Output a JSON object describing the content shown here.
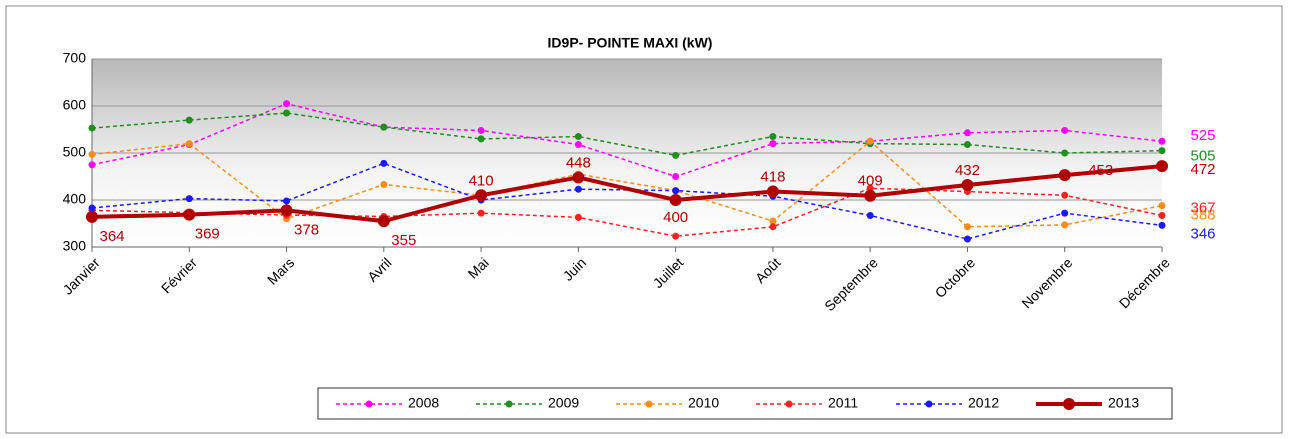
{
  "chart_data": {
    "type": "line",
    "title": "ID9P- POINTE MAXI  (kW)",
    "categories": [
      "Janvier",
      "Février",
      "Mars",
      "Avril",
      "Mai",
      "Juin",
      "Juillet",
      "Août",
      "Septembre",
      "Octobre",
      "Novembre",
      "Décembre"
    ],
    "ylim": [
      300,
      700
    ],
    "yticks": [
      300,
      400,
      500,
      600,
      700
    ],
    "grid": true,
    "series": [
      {
        "name": "2008",
        "color": "#ff00ff",
        "values": [
          475,
          518,
          605,
          555,
          548,
          518,
          450,
          520,
          525,
          543,
          548,
          525
        ],
        "value_labels": [
          null,
          null,
          null,
          null,
          null,
          null,
          null,
          null,
          null,
          null,
          null,
          "525"
        ]
      },
      {
        "name": "2009",
        "color": "#1f8f1f",
        "values": [
          553,
          570,
          585,
          555,
          530,
          535,
          495,
          535,
          520,
          518,
          500,
          505
        ],
        "value_labels": [
          null,
          null,
          null,
          null,
          null,
          null,
          null,
          null,
          null,
          null,
          null,
          "505"
        ]
      },
      {
        "name": "2010",
        "color": "#ff8c1a",
        "values": [
          497,
          520,
          360,
          433,
          410,
          455,
          420,
          355,
          525,
          343,
          347,
          388
        ],
        "value_labels": [
          null,
          null,
          null,
          null,
          null,
          null,
          null,
          null,
          null,
          null,
          null,
          "388"
        ]
      },
      {
        "name": "2011",
        "color": "#ff2020",
        "values": [
          378,
          373,
          368,
          365,
          372,
          363,
          323,
          343,
          425,
          418,
          410,
          367
        ],
        "value_labels": [
          null,
          null,
          null,
          null,
          null,
          null,
          null,
          null,
          null,
          null,
          null,
          "367"
        ]
      },
      {
        "name": "2012",
        "color": "#1a1aff",
        "values": [
          383,
          403,
          398,
          478,
          400,
          423,
          420,
          408,
          367,
          317,
          372,
          346
        ],
        "value_labels": [
          null,
          null,
          null,
          null,
          null,
          null,
          null,
          null,
          null,
          null,
          null,
          "346"
        ]
      },
      {
        "name": "2013",
        "color": "#b00000",
        "values": [
          364,
          369,
          378,
          355,
          410,
          448,
          400,
          418,
          409,
          432,
          453,
          472
        ],
        "value_labels": [
          "364",
          "369",
          "378",
          "355",
          "410",
          "448",
          "400",
          "418",
          "409",
          "432",
          "453",
          "472"
        ]
      }
    ]
  }
}
